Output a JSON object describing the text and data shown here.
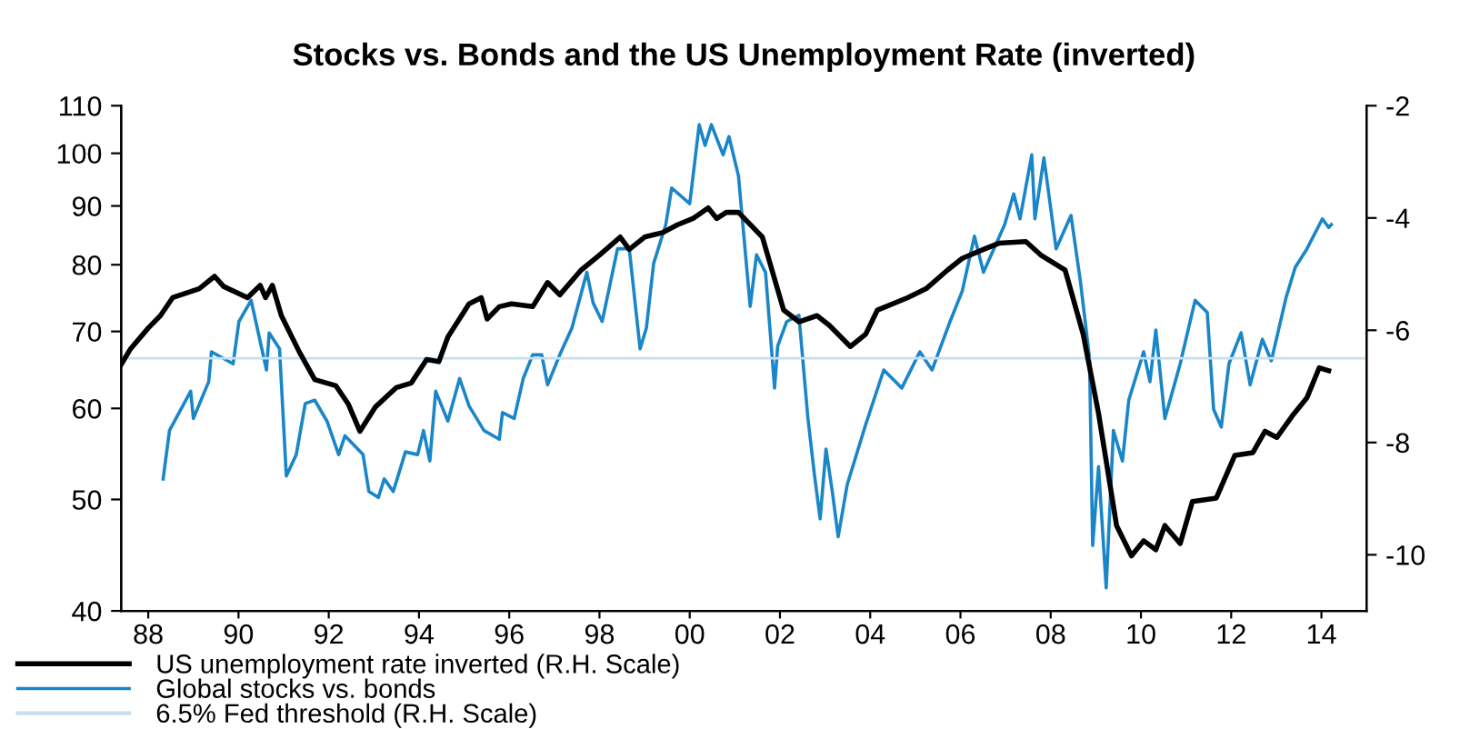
{
  "chart_data": {
    "type": "line",
    "title": "Stocks vs. Bonds and the US Unemployment Rate (inverted)",
    "series": [
      {
        "name": "US unemployment rate inverted (R.H. Scale)",
        "color": "#000000",
        "axis": "y2",
        "x": [
          1987.4,
          1987.6,
          1988.0,
          1988.27,
          1988.54,
          1989.13,
          1989.47,
          1989.67,
          1990.2,
          1990.48,
          1990.6,
          1990.75,
          1990.95,
          1991.35,
          1991.69,
          1992.16,
          1992.43,
          1992.69,
          1993.03,
          1993.5,
          1993.83,
          1994.17,
          1994.44,
          1994.64,
          1995.11,
          1995.38,
          1995.51,
          1995.78,
          1996.05,
          1996.52,
          1996.85,
          1997.12,
          1997.59,
          1998.0,
          1998.46,
          1998.66,
          1999.0,
          1999.4,
          1999.73,
          2000.07,
          2000.41,
          2000.6,
          2000.81,
          2001.08,
          2001.61,
          2002.08,
          2002.42,
          2002.82,
          2003.09,
          2003.56,
          2003.9,
          2004.16,
          2004.83,
          2005.24,
          2005.71,
          2006.04,
          2006.51,
          2006.85,
          2007.45,
          2007.78,
          2008.32,
          2008.72,
          2009.06,
          2009.46,
          2009.79,
          2010.06,
          2010.33,
          2010.53,
          2010.87,
          2011.14,
          2011.67,
          2012.08,
          2012.48,
          2012.75,
          2013.01,
          2013.35,
          2013.68,
          2013.95,
          2014.16
        ],
        "values": [
          -6.61,
          -6.34,
          -5.96,
          -5.74,
          -5.42,
          -5.26,
          -5.04,
          -5.22,
          -5.42,
          -5.2,
          -5.42,
          -5.2,
          -5.74,
          -6.39,
          -6.88,
          -6.99,
          -7.31,
          -7.8,
          -7.37,
          -7.02,
          -6.94,
          -6.52,
          -6.56,
          -6.12,
          -5.53,
          -5.42,
          -5.8,
          -5.58,
          -5.53,
          -5.58,
          -5.15,
          -5.37,
          -4.93,
          -4.66,
          -4.34,
          -4.56,
          -4.34,
          -4.26,
          -4.12,
          -4.01,
          -3.82,
          -4.01,
          -3.9,
          -3.9,
          -4.34,
          -5.64,
          -5.85,
          -5.74,
          -5.91,
          -6.29,
          -6.07,
          -5.64,
          -5.42,
          -5.26,
          -4.93,
          -4.72,
          -4.56,
          -4.45,
          -4.42,
          -4.66,
          -4.93,
          -6.07,
          -7.48,
          -9.48,
          -10.02,
          -9.75,
          -9.91,
          -9.48,
          -9.8,
          -9.05,
          -8.99,
          -8.23,
          -8.18,
          -7.8,
          -7.91,
          -7.53,
          -7.2,
          -6.67,
          -6.72
        ]
      },
      {
        "name": "Global stocks vs. bonds",
        "color": "#1a86c8",
        "x": [
          1988.33,
          1988.47,
          1988.94,
          1989.0,
          1989.34,
          1989.4,
          1989.88,
          1990.01,
          1990.28,
          1990.62,
          1990.68,
          1990.91,
          1991.06,
          1991.28,
          1991.48,
          1991.69,
          1991.96,
          1992.22,
          1992.36,
          1992.76,
          1992.89,
          1993.1,
          1993.23,
          1993.43,
          1993.7,
          1993.97,
          1994.1,
          1994.24,
          1994.37,
          1994.64,
          1994.9,
          1995.11,
          1995.44,
          1995.78,
          1995.85,
          1996.11,
          1996.31,
          1996.52,
          1996.72,
          1996.85,
          1997.12,
          1997.39,
          1997.72,
          1997.86,
          1998.06,
          1998.4,
          1998.66,
          1998.9,
          1999.04,
          1999.2,
          1999.47,
          1999.6,
          2000.0,
          2000.21,
          2000.34,
          2000.48,
          2000.74,
          2000.87,
          2001.08,
          2001.34,
          2001.48,
          2001.68,
          2001.88,
          2001.95,
          2002.15,
          2002.42,
          2002.62,
          2002.76,
          2002.89,
          2003.02,
          2003.16,
          2003.29,
          2003.49,
          2003.9,
          2004.3,
          2004.7,
          2005.1,
          2005.37,
          2005.77,
          2006.04,
          2006.31,
          2006.51,
          2006.98,
          2007.18,
          2007.32,
          2007.58,
          2007.65,
          2007.85,
          2008.12,
          2008.45,
          2008.66,
          2008.86,
          2008.93,
          2009.06,
          2009.23,
          2009.39,
          2009.59,
          2009.73,
          2010.06,
          2010.2,
          2010.33,
          2010.53,
          2010.87,
          2011.2,
          2011.47,
          2011.61,
          2011.78,
          2011.95,
          2012.22,
          2012.42,
          2012.69,
          2012.89,
          2013.22,
          2013.42,
          2013.68,
          2014.02,
          2014.16,
          2014.22
        ],
        "values": [
          52.1,
          57.4,
          62.1,
          58.8,
          63.3,
          67.2,
          65.6,
          71.4,
          74.5,
          64.8,
          69.8,
          67.6,
          52.4,
          54.7,
          60.6,
          61.0,
          58.5,
          54.7,
          56.8,
          54.7,
          50.8,
          50.2,
          52.1,
          50.8,
          55.0,
          54.7,
          57.4,
          54.0,
          62.1,
          58.5,
          63.7,
          60.3,
          57.4,
          56.4,
          59.5,
          58.8,
          63.7,
          66.8,
          66.8,
          62.9,
          66.8,
          70.5,
          78.8,
          74.1,
          71.4,
          82.6,
          82.6,
          67.6,
          70.5,
          80.2,
          86.7,
          93.3,
          90.4,
          105.9,
          101.6,
          105.9,
          99.7,
          103.4,
          95.6,
          73.6,
          81.6,
          78.8,
          62.5,
          68.0,
          71.4,
          72.3,
          58.8,
          52.7,
          48.1,
          55.3,
          50.8,
          46.4,
          51.5,
          58.1,
          64.8,
          62.5,
          67.2,
          64.8,
          71.4,
          75.9,
          84.7,
          78.8,
          86.7,
          92.2,
          87.7,
          99.7,
          87.7,
          99.1,
          82.6,
          88.3,
          77.3,
          66.4,
          45.6,
          53.4,
          41.9,
          57.4,
          54.0,
          61.0,
          67.2,
          63.3,
          70.2,
          58.8,
          65.6,
          74.5,
          72.7,
          59.9,
          57.8,
          65.6,
          69.8,
          62.9,
          68.9,
          66.0,
          75.0,
          79.6,
          82.6,
          87.7,
          86.2,
          86.7
        ]
      }
    ],
    "ref_lines": [
      {
        "axis": "y2",
        "value": -6.5,
        "label": "6.5% Fed threshold (R.H. Scale)",
        "color": "#c6e0f0"
      }
    ],
    "log": "y",
    "ylim": [
      40,
      110
    ],
    "yticks": [
      40,
      50,
      60,
      70,
      80,
      90,
      100,
      110
    ],
    "y2lim": [
      -11,
      -2
    ],
    "y2ticks": [
      -2,
      -4,
      -6,
      -8,
      -10
    ],
    "xlim": [
      1987.4,
      2015.0
    ],
    "xticks": [
      {
        "value": 1988,
        "label": "88"
      },
      {
        "value": 1990,
        "label": "90"
      },
      {
        "value": 1992,
        "label": "92"
      },
      {
        "value": 1994,
        "label": "94"
      },
      {
        "value": 1996,
        "label": "96"
      },
      {
        "value": 1998,
        "label": "98"
      },
      {
        "value": 2000,
        "label": "00"
      },
      {
        "value": 2002,
        "label": "02"
      },
      {
        "value": 2004,
        "label": "04"
      },
      {
        "value": 2006,
        "label": "06"
      },
      {
        "value": 2008,
        "label": "08"
      },
      {
        "value": 2010,
        "label": "10"
      },
      {
        "value": 2012,
        "label": "12"
      },
      {
        "value": 2014,
        "label": "14"
      }
    ],
    "grid": false,
    "legend": "bottom left"
  }
}
